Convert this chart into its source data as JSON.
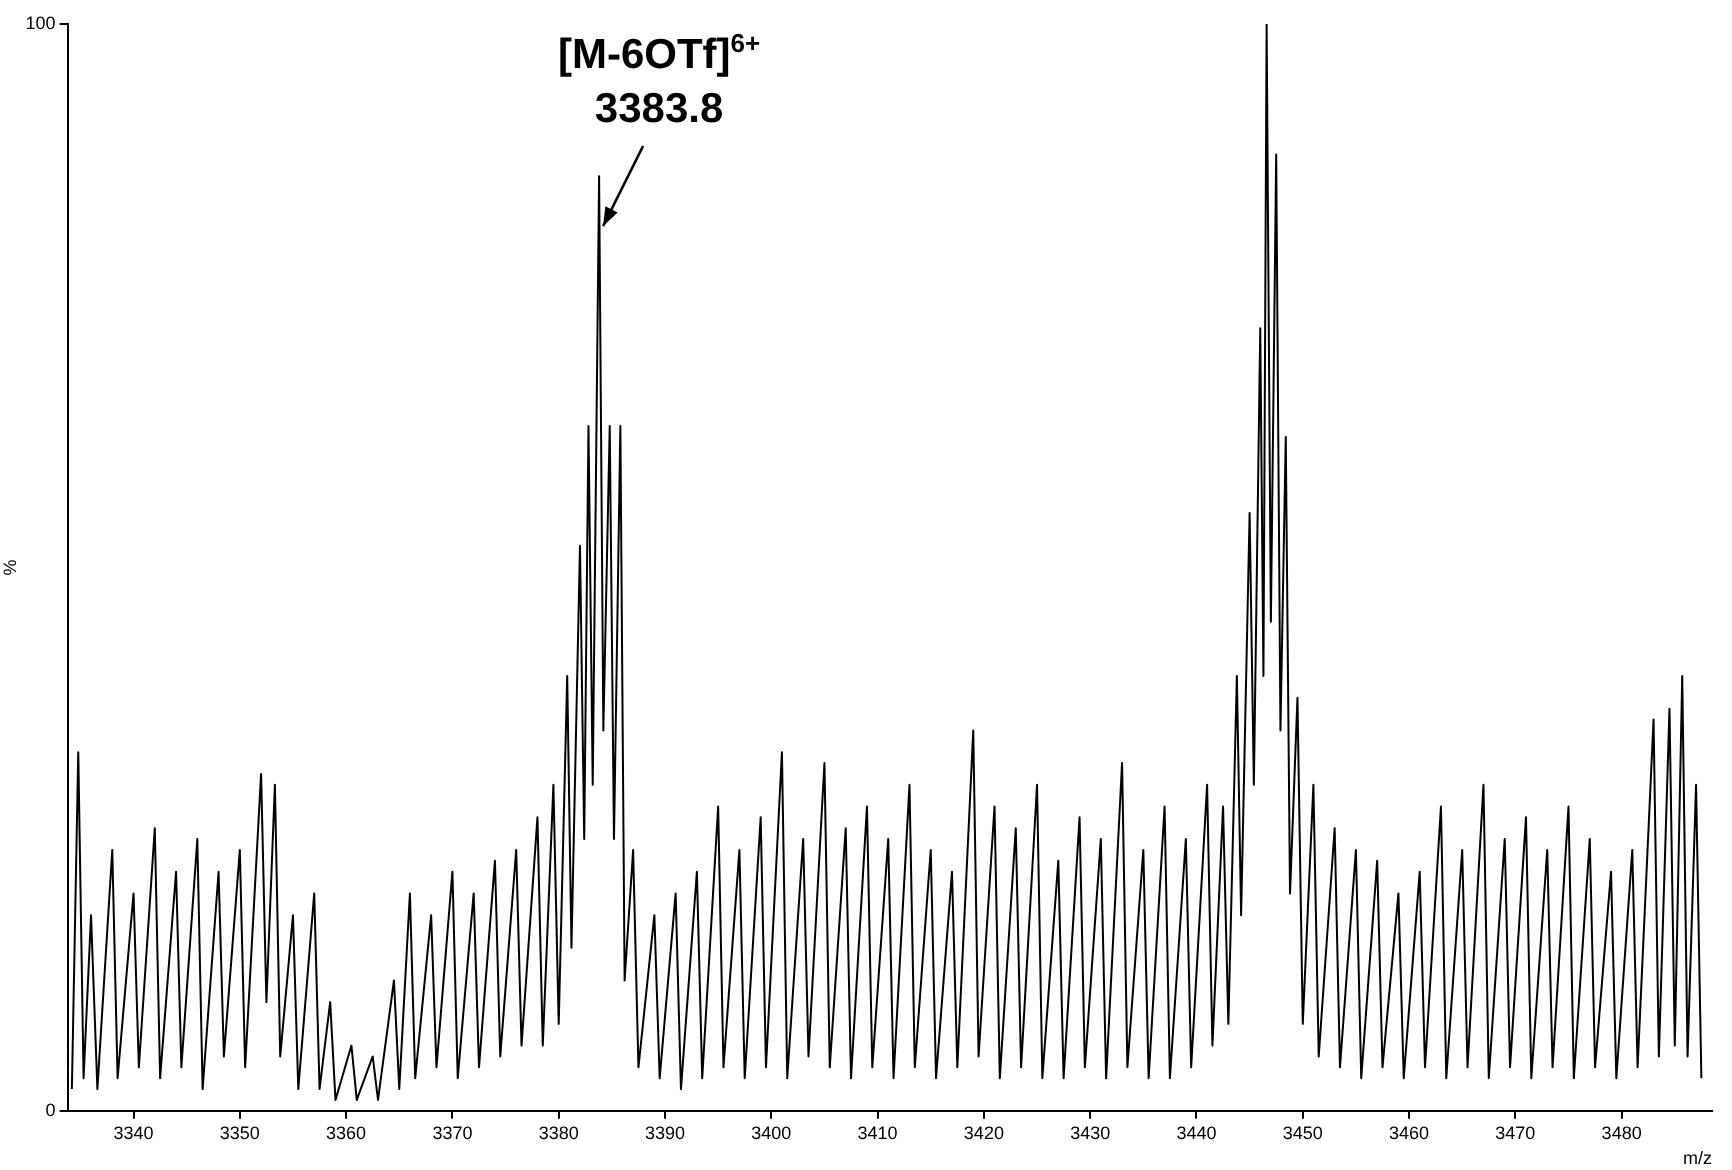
{
  "chart_data": {
    "type": "line",
    "ylabel": "%",
    "xlabel": "m/z",
    "xlim": [
      3333.8,
      3488.5
    ],
    "xticks": [
      3340,
      3350,
      3360,
      3370,
      3380,
      3390,
      3400,
      3410,
      3420,
      3430,
      3440,
      3450,
      3460,
      3470,
      3480
    ],
    "ylim": [
      0,
      100
    ],
    "yticks": [
      0,
      100
    ],
    "grid": false,
    "legend": false,
    "marker": "none",
    "line_style": "solid",
    "annotations": [
      {
        "text": "[M-6OTf]$^{6+}$\n3383.8",
        "x": 3383.8,
        "y": 86
      }
    ],
    "series": [
      {
        "color": "#000000",
        "x": [
          3334.2,
          3334.8,
          3335.3,
          3336,
          3336.6,
          3338,
          3338.5,
          3340,
          3340.5,
          3342,
          3342.5,
          3344,
          3344.5,
          3346,
          3346.5,
          3348,
          3348.5,
          3350,
          3350.5,
          3352,
          3352.5,
          3353.3,
          3353.8,
          3355,
          3355.5,
          3357,
          3357.5,
          3358.5,
          3359,
          3360.5,
          3361,
          3362.5,
          3363,
          3364.5,
          3365,
          3366,
          3366.5,
          3368,
          3368.5,
          3370,
          3370.5,
          3372,
          3372.5,
          3374,
          3374.5,
          3376,
          3376.5,
          3378,
          3378.5,
          3379.5,
          3380,
          3380.8,
          3381.2,
          3382,
          3382.4,
          3382.8,
          3383.2,
          3383.8,
          3384.2,
          3384.8,
          3385.2,
          3385.8,
          3386.2,
          3387,
          3387.5,
          3389,
          3389.5,
          3391,
          3391.5,
          3393,
          3393.5,
          3395,
          3395.5,
          3397,
          3397.5,
          3399,
          3399.5,
          3401,
          3401.5,
          3403,
          3403.5,
          3405,
          3405.5,
          3407,
          3407.5,
          3409,
          3409.5,
          3411,
          3411.5,
          3413,
          3413.5,
          3415,
          3415.5,
          3417,
          3417.5,
          3419,
          3419.5,
          3421,
          3421.5,
          3423,
          3423.5,
          3425,
          3425.5,
          3427,
          3427.5,
          3429,
          3429.5,
          3431,
          3431.5,
          3433,
          3433.5,
          3435,
          3435.5,
          3437,
          3437.5,
          3439,
          3439.5,
          3441,
          3441.5,
          3442.5,
          3443,
          3443.8,
          3444.2,
          3445,
          3445.4,
          3446,
          3446.3,
          3446.6,
          3447,
          3447.5,
          3447.9,
          3448.4,
          3448.8,
          3449.5,
          3450,
          3451,
          3451.5,
          3453,
          3453.5,
          3455,
          3455.5,
          3457,
          3457.5,
          3459,
          3459.5,
          3461,
          3461.5,
          3463,
          3463.5,
          3465,
          3465.5,
          3467,
          3467.5,
          3469,
          3469.5,
          3471,
          3471.5,
          3473,
          3473.5,
          3475,
          3475.5,
          3477,
          3477.5,
          3479,
          3479.5,
          3481,
          3481.5,
          3483,
          3483.5,
          3484.5,
          3485,
          3485.7,
          3486.2,
          3487,
          3487.5
        ],
        "values": [
          2,
          33,
          3,
          18,
          2,
          24,
          3,
          20,
          4,
          26,
          3,
          22,
          4,
          25,
          2,
          22,
          5,
          24,
          4,
          31,
          10,
          30,
          5,
          18,
          2,
          20,
          2,
          10,
          1,
          6,
          1,
          5,
          1,
          12,
          2,
          20,
          3,
          18,
          4,
          22,
          3,
          20,
          4,
          23,
          5,
          24,
          6,
          27,
          6,
          30,
          8,
          40,
          15,
          52,
          25,
          63,
          30,
          86,
          35,
          63,
          25,
          63,
          12,
          24,
          4,
          18,
          3,
          20,
          2,
          22,
          3,
          28,
          4,
          24,
          3,
          27,
          4,
          33,
          3,
          25,
          5,
          32,
          4,
          26,
          3,
          28,
          4,
          25,
          3,
          30,
          4,
          24,
          3,
          22,
          4,
          35,
          5,
          28,
          3,
          26,
          4,
          30,
          3,
          23,
          3,
          27,
          4,
          25,
          3,
          32,
          4,
          24,
          3,
          28,
          3,
          25,
          4,
          30,
          6,
          28,
          8,
          40,
          18,
          55,
          30,
          72,
          40,
          100,
          45,
          88,
          35,
          62,
          20,
          38,
          8,
          30,
          5,
          26,
          4,
          24,
          3,
          23,
          4,
          20,
          3,
          22,
          4,
          28,
          3,
          24,
          4,
          30,
          3,
          25,
          4,
          27,
          3,
          24,
          4,
          28,
          3,
          25,
          4,
          22,
          3,
          24,
          4,
          36,
          5,
          37,
          6,
          40,
          5,
          30,
          3
        ]
      }
    ]
  }
}
